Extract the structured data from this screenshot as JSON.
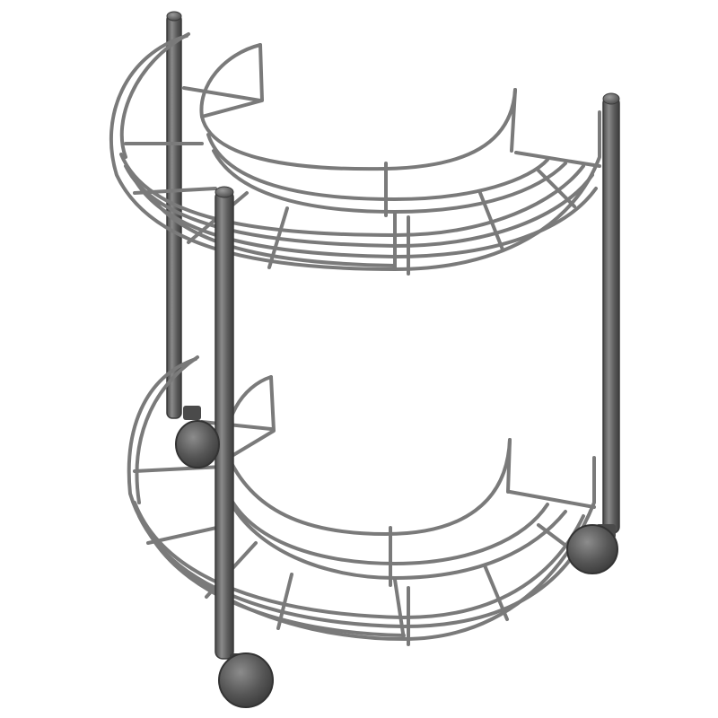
{
  "scene": {
    "subject": "rack-illustration",
    "colors": {
      "background": "#ffffff",
      "wire": "#7a7a7a",
      "wire_dark": "#4a4a4a",
      "post": "#5a5a5a",
      "post_highlight": "#8a8a8a",
      "post_cap": "#6a6a6a",
      "wheel": "#565656",
      "wheel_highlight": "#8c8c8c",
      "wheel_shadow": "#3a3a3a"
    }
  }
}
